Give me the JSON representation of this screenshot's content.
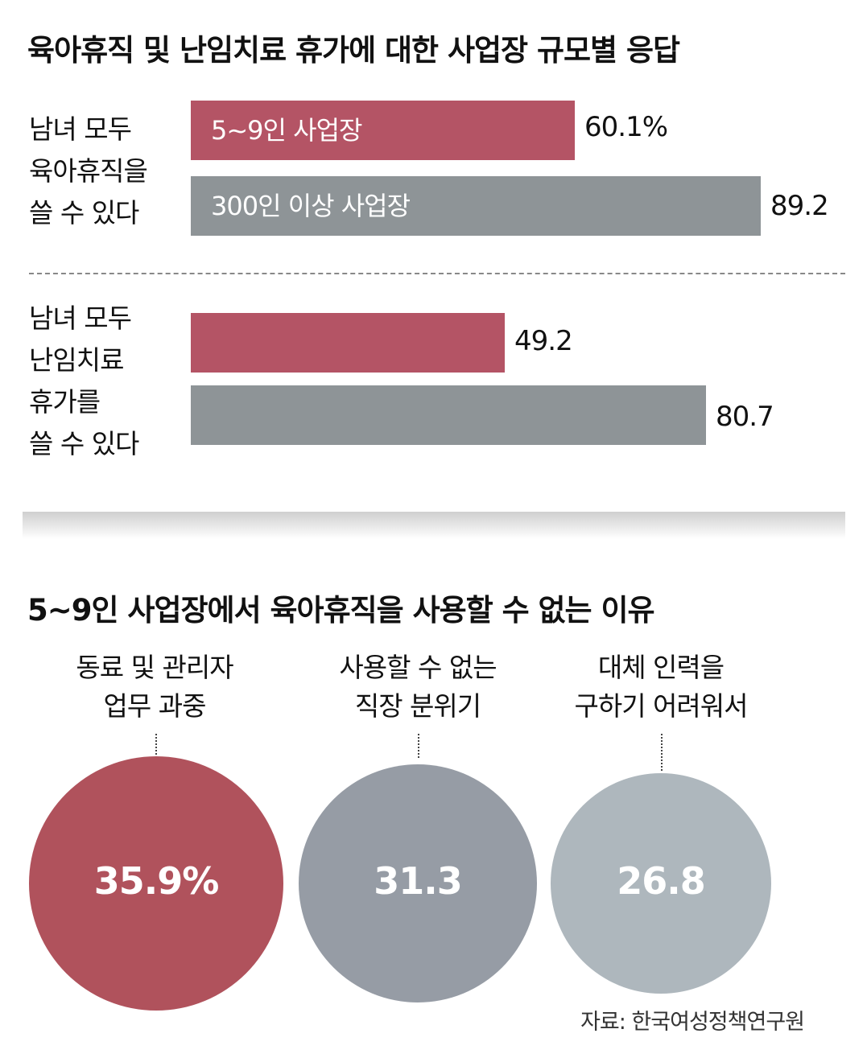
{
  "title1": "육아휴직 및 난임치료 휴가에 대한 사업장 규모별 응답",
  "title2": "5~9인 사업장에서 육아휴직을 사용할 수 없는 이유",
  "source": "자료: 한국여성정책연구원",
  "colors": {
    "red": "#b45465",
    "gray": "#8e9497",
    "circle1": "#b0525c",
    "circle2": "#969ca5",
    "circle3": "#aeb7bd"
  },
  "chart_data": [
    {
      "type": "bar",
      "title": "육아휴직 및 난임치료 휴가에 대한 사업장 규모별 응답",
      "unit": "%",
      "categories": [
        {
          "lines": [
            "남녀 모두",
            "육아휴직을",
            "쓸 수 있다"
          ]
        },
        {
          "lines": [
            "남녀 모두",
            "난임치료",
            "휴가를",
            "쓸 수 있다"
          ]
        }
      ],
      "series": [
        {
          "name": "5~9인 사업장",
          "values": [
            60.1,
            49.2
          ],
          "value_labels": [
            "60.1%",
            "49.2"
          ]
        },
        {
          "name": "300인 이상 사업장",
          "values": [
            89.2,
            80.7
          ],
          "value_labels": [
            "89.2",
            "80.7"
          ]
        }
      ],
      "xlim": [
        0,
        100
      ]
    },
    {
      "type": "bubble",
      "title": "5~9인 사업장에서 육아휴직을 사용할 수 없는 이유",
      "unit": "%",
      "items": [
        {
          "lines": [
            "동료 및 관리자",
            "업무 과중"
          ],
          "value": 35.9,
          "value_label": "35.9%"
        },
        {
          "lines": [
            "사용할 수 없는",
            "직장 분위기"
          ],
          "value": 31.3,
          "value_label": "31.3"
        },
        {
          "lines": [
            "대체 인력을",
            "구하기 어려워서"
          ],
          "value": 26.8,
          "value_label": "26.8"
        }
      ]
    }
  ]
}
